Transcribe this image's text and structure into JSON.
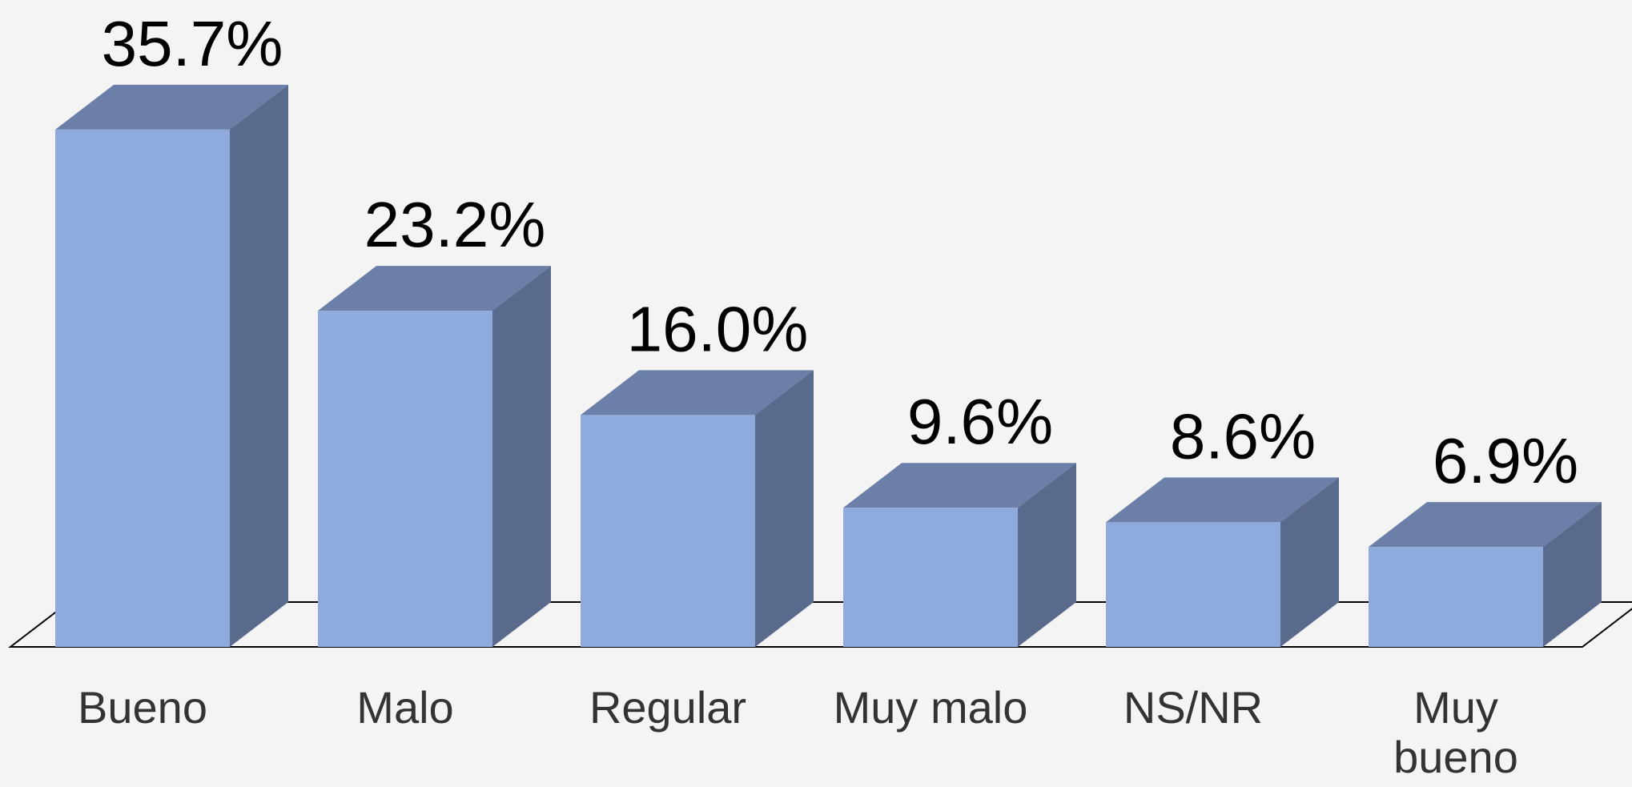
{
  "chart_data": {
    "type": "bar3d",
    "categories": [
      "Bueno",
      "Malo",
      "Regular",
      "Muy malo",
      "NS/NR",
      "Muy bueno"
    ],
    "values": [
      35.7,
      23.2,
      16.0,
      9.6,
      8.6,
      6.9
    ],
    "value_labels": [
      "35.7%",
      "23.2%",
      "16.0%",
      "9.6%",
      "8.6%",
      "6.9%"
    ],
    "color": "#8faadc"
  }
}
